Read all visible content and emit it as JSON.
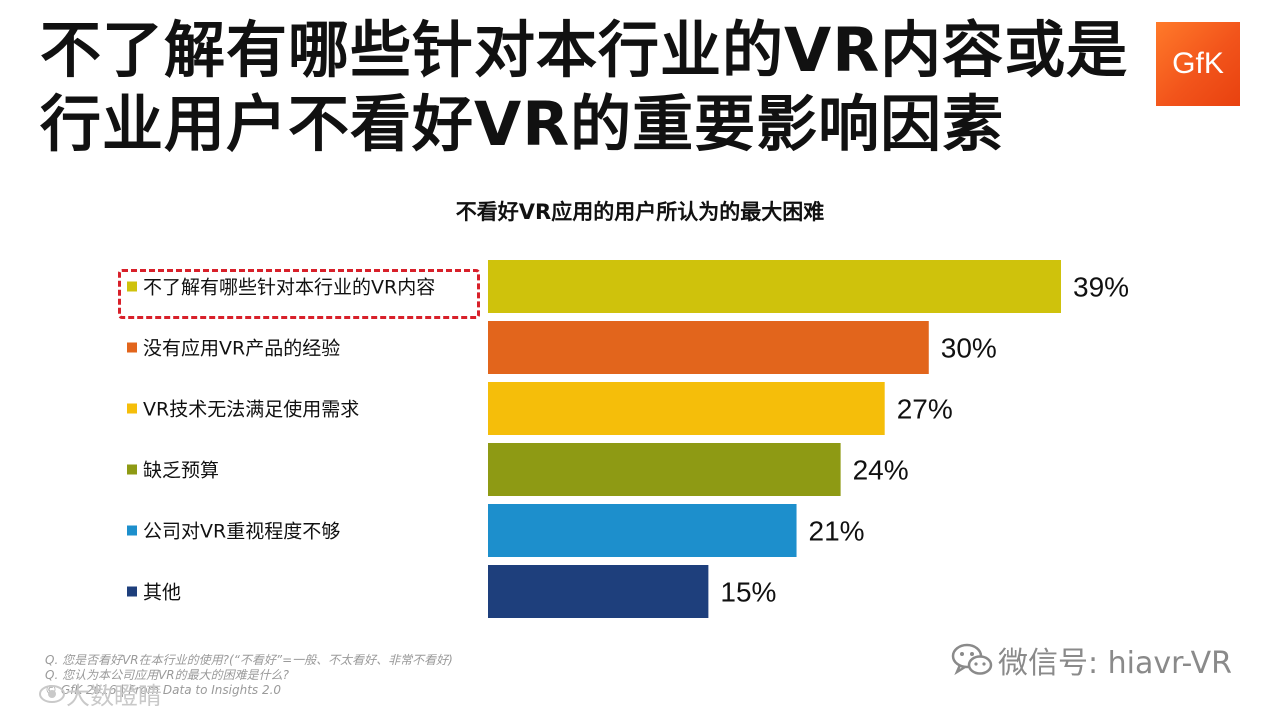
{
  "header": {
    "title_line1": "不了解有哪些针对本行业的VR内容或是",
    "title_line2": "行业用户不看好VR的重要影响因素",
    "logo_text": "GfK"
  },
  "chart_data": {
    "type": "bar",
    "orientation": "horizontal",
    "title": "不看好VR应用的用户所认为的最大困难",
    "categories": [
      "不了解有哪些针对本行业的VR内容",
      "没有应用VR产品的经验",
      "VR技术无法满足使用需求",
      "缺乏预算",
      "公司对VR重视程度不够",
      "其他"
    ],
    "values": [
      39,
      30,
      27,
      24,
      21,
      15
    ],
    "value_labels": [
      "39%",
      "30%",
      "27%",
      "24%",
      "21%",
      "15%"
    ],
    "colors": [
      "#cfc20c",
      "#e2651c",
      "#f5be0a",
      "#8e9a14",
      "#1d8fcc",
      "#1e3f7c"
    ],
    "xlabel": "",
    "ylabel": "",
    "xlim": [
      0,
      39
    ],
    "grid": false,
    "legend": "none",
    "highlighted_category": "不了解有哪些针对本行业的VR内容"
  },
  "footnote": {
    "line1": "Q. 您是否看好VR在本行业的使用?(“不看好”=一般、不太看好、非常不看好)",
    "line2": "Q. 您认为本公司应用VR的最大的困难是什么?",
    "line3": "© GfK 2016 | From Data to Insights 2.0"
  },
  "watermark": {
    "wechat_text": "微信号: hiavr-VR",
    "corner_text": "大数瞪睛"
  }
}
